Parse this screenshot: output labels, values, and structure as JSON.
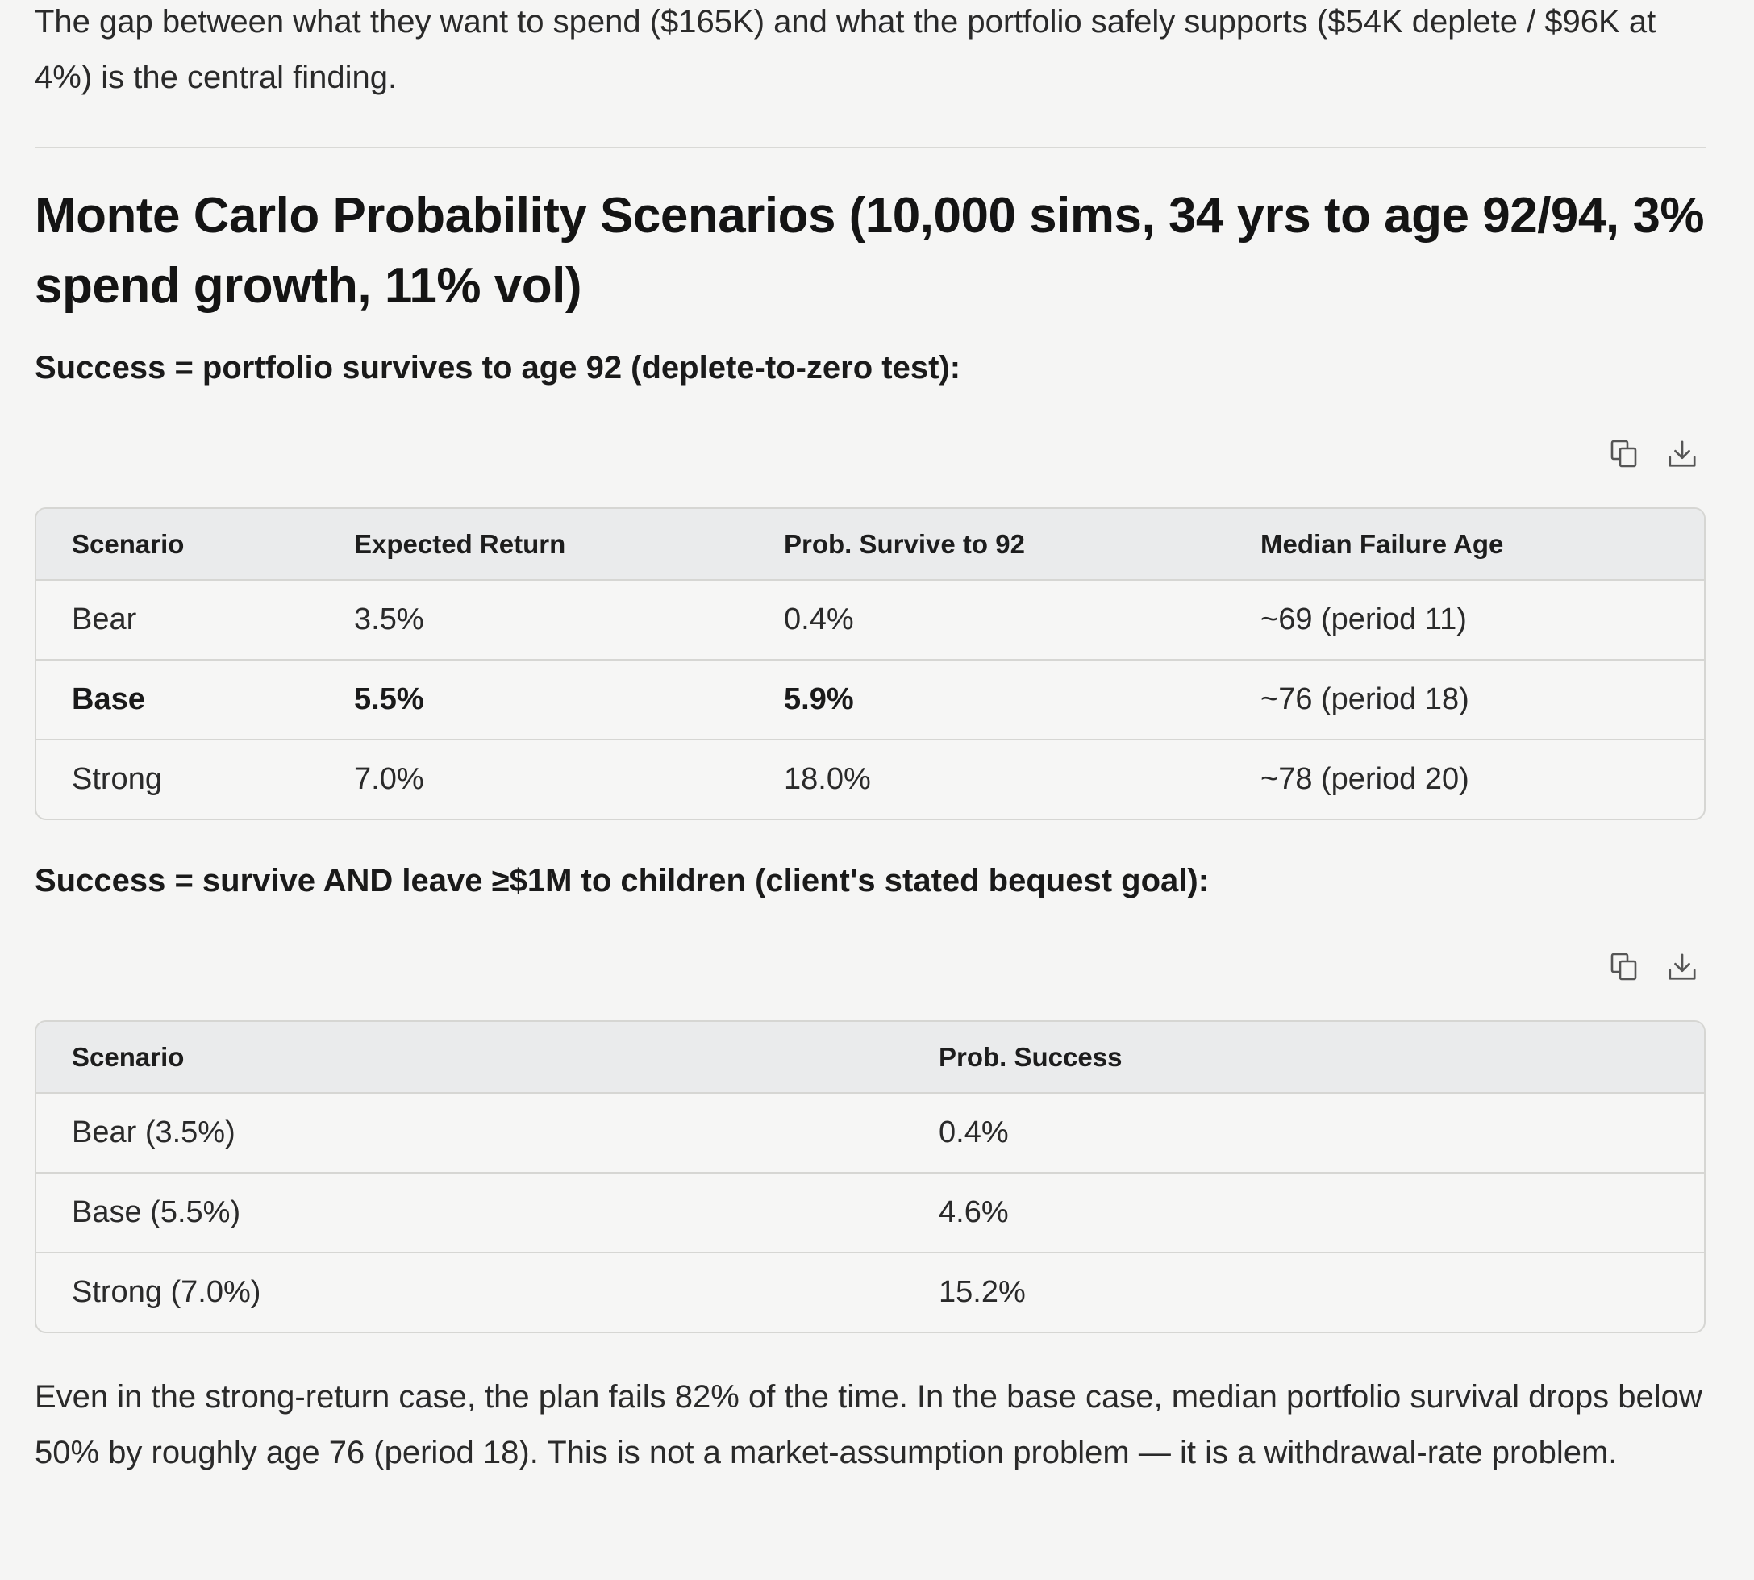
{
  "intro_paragraph": "The gap between what they want to spend ($165K) and what the portfolio safely supports ($54K deplete / $96K at 4%) is the central finding.",
  "section": {
    "heading": "Monte Carlo Probability Scenarios (10,000 sims, 34 yrs to age 92/94, 3% spend growth, 11% vol)"
  },
  "table1": {
    "subheading": "Success = portfolio survives to age 92 (deplete-to-zero test):",
    "headers": [
      "Scenario",
      "Expected Return",
      "Prob. Survive to 92",
      "Median Failure Age"
    ],
    "rows": [
      [
        "Bear",
        "3.5%",
        "0.4%",
        "~69 (period 11)"
      ],
      [
        "Base",
        "5.5%",
        "5.9%",
        "~76 (period 18)"
      ],
      [
        "Strong",
        "7.0%",
        "18.0%",
        "~78 (period 20)"
      ]
    ]
  },
  "table2": {
    "subheading": "Success = survive AND leave ≥$1M to children (client's stated bequest goal):",
    "headers": [
      "Scenario",
      "Prob. Success"
    ],
    "rows": [
      [
        "Bear (3.5%)",
        "0.4%"
      ],
      [
        "Base (5.5%)",
        "4.6%"
      ],
      [
        "Strong (7.0%)",
        "15.2%"
      ]
    ]
  },
  "icons": {
    "copy": "copy-icon",
    "download": "download-icon"
  },
  "conclusion_paragraph": "Even in the strong-return case, the plan fails 82% of the time. In the base case, median portfolio survival drops below 50% by roughly age 76 (period 18). This is not a market-assumption problem — it is a withdrawal-rate problem."
}
